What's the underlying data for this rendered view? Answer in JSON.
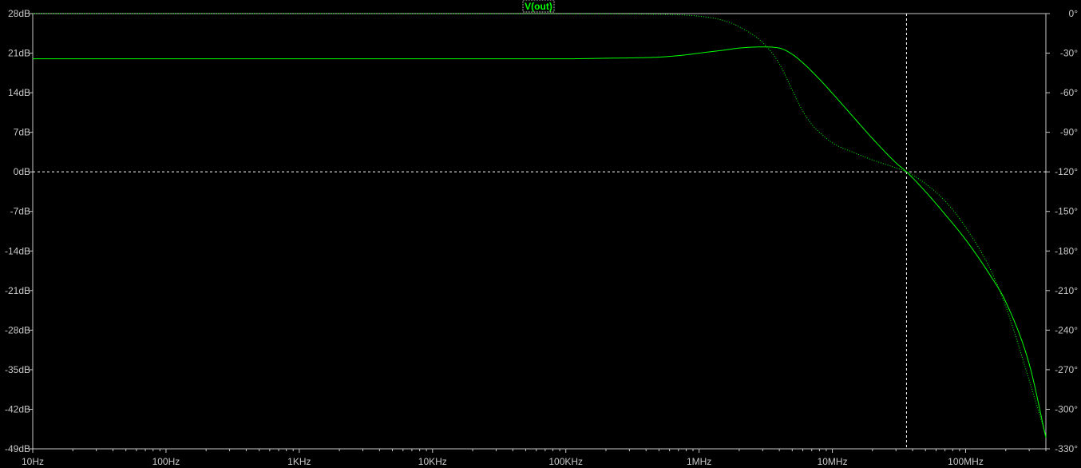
{
  "chart_data": {
    "type": "line",
    "legend": "V(out)",
    "x_scale": "log",
    "xlim": [
      10,
      400000000
    ],
    "ylim": [
      -49,
      28
    ],
    "y2lim": [
      -330,
      0
    ],
    "x_ticks": [
      {
        "value": 10,
        "label": "10Hz"
      },
      {
        "value": 100,
        "label": "100Hz"
      },
      {
        "value": 1000,
        "label": "1KHz"
      },
      {
        "value": 10000,
        "label": "10KHz"
      },
      {
        "value": 100000,
        "label": "100KHz"
      },
      {
        "value": 1000000,
        "label": "1MHz"
      },
      {
        "value": 10000000,
        "label": "10MHz"
      },
      {
        "value": 100000000,
        "label": "100MHz"
      }
    ],
    "y_ticks": [
      {
        "value": 28,
        "label": "28dB"
      },
      {
        "value": 21,
        "label": "21dB"
      },
      {
        "value": 14,
        "label": "14dB"
      },
      {
        "value": 7,
        "label": "7dB"
      },
      {
        "value": 0,
        "label": "0dB"
      },
      {
        "value": -7,
        "label": "-7dB"
      },
      {
        "value": -14,
        "label": "-14dB"
      },
      {
        "value": -21,
        "label": "-21dB"
      },
      {
        "value": -28,
        "label": "-28dB"
      },
      {
        "value": -35,
        "label": "-35dB"
      },
      {
        "value": -42,
        "label": "-42dB"
      },
      {
        "value": -49,
        "label": "-49dB"
      }
    ],
    "y2_ticks": [
      {
        "value": 0,
        "label": "0°"
      },
      {
        "value": -30,
        "label": "-30°"
      },
      {
        "value": -60,
        "label": "-60°"
      },
      {
        "value": -90,
        "label": "-90°"
      },
      {
        "value": -120,
        "label": "-120°"
      },
      {
        "value": -150,
        "label": "-150°"
      },
      {
        "value": -180,
        "label": "-180°"
      },
      {
        "value": -210,
        "label": "-210°"
      },
      {
        "value": -240,
        "label": "-240°"
      },
      {
        "value": -270,
        "label": "-270°"
      },
      {
        "value": -300,
        "label": "-300°"
      },
      {
        "value": -330,
        "label": "-330°"
      }
    ],
    "cursor": {
      "x": 36000000,
      "y": 0
    },
    "series": [
      {
        "kind": "magnitude",
        "axis": "left",
        "style": "solid",
        "color": "#00ff00",
        "points": [
          [
            10,
            20.0
          ],
          [
            100,
            20.0
          ],
          [
            1000,
            20.0
          ],
          [
            10000,
            20.0
          ],
          [
            100000,
            20.0
          ],
          [
            200000,
            20.1
          ],
          [
            500000,
            20.3
          ],
          [
            800000,
            20.7
          ],
          [
            1000000,
            21.0
          ],
          [
            1500000,
            21.5
          ],
          [
            2000000,
            21.9
          ],
          [
            3000000,
            22.1
          ],
          [
            4000000,
            21.9
          ],
          [
            5000000,
            20.8
          ],
          [
            6000000,
            19.3
          ],
          [
            8000000,
            16.4
          ],
          [
            10000000,
            13.9
          ],
          [
            15000000,
            9.2
          ],
          [
            20000000,
            5.9
          ],
          [
            30000000,
            1.6
          ],
          [
            36000000,
            0.0
          ],
          [
            50000000,
            -3.5
          ],
          [
            70000000,
            -7.5
          ],
          [
            100000000,
            -12.0
          ],
          [
            150000000,
            -18.0
          ],
          [
            200000000,
            -23.0
          ],
          [
            300000000,
            -34.0
          ],
          [
            400000000,
            -47.0
          ]
        ]
      },
      {
        "kind": "phase",
        "axis": "right",
        "style": "dotted",
        "color": "#00ff00",
        "points": [
          [
            10,
            0
          ],
          [
            1000,
            0
          ],
          [
            100000,
            -0.2
          ],
          [
            500000,
            -0.5
          ],
          [
            1000000,
            -2
          ],
          [
            1500000,
            -5
          ],
          [
            2000000,
            -10
          ],
          [
            3000000,
            -22
          ],
          [
            4000000,
            -38
          ],
          [
            5000000,
            -58
          ],
          [
            6000000,
            -74
          ],
          [
            7000000,
            -84
          ],
          [
            8000000,
            -90
          ],
          [
            10000000,
            -98
          ],
          [
            15000000,
            -106
          ],
          [
            20000000,
            -111
          ],
          [
            30000000,
            -117
          ],
          [
            36000000,
            -120
          ],
          [
            50000000,
            -129
          ],
          [
            70000000,
            -142
          ],
          [
            100000000,
            -162
          ],
          [
            150000000,
            -192
          ],
          [
            200000000,
            -222
          ],
          [
            300000000,
            -278
          ],
          [
            400000000,
            -320
          ]
        ]
      }
    ]
  }
}
